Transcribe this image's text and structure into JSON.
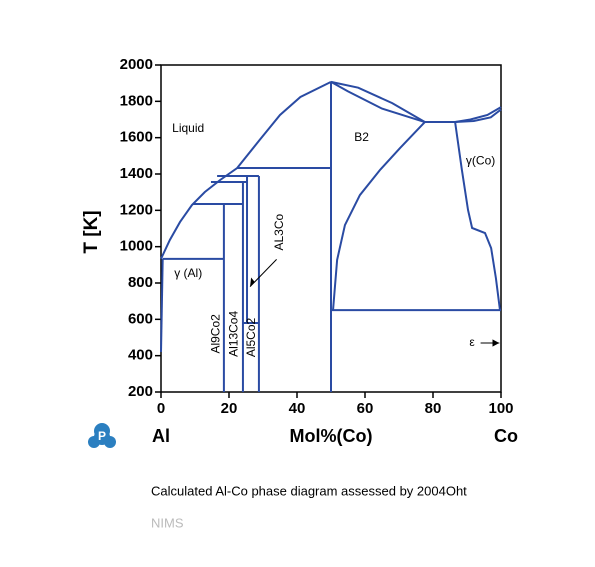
{
  "chart_data": {
    "type": "line",
    "x_label": "Mol%(Co)",
    "y_label": "T [K]",
    "x_left_label": "Al",
    "x_right_label": "Co",
    "xlim": [
      0,
      100
    ],
    "ylim": [
      200,
      2000
    ],
    "xticks": [
      0,
      20,
      40,
      60,
      80,
      100
    ],
    "yticks": [
      200,
      400,
      600,
      800,
      1000,
      1200,
      1400,
      1600,
      1800,
      2000
    ],
    "color": "#2a4ba3",
    "annotations": [
      "Liquid",
      "B2",
      "γ(Co)",
      "γ (Al)",
      "AL3Co",
      "Al9Co2",
      "Al13Co4",
      "Al5Co2",
      "ε"
    ],
    "series": [
      {
        "x": [
          0,
          2.6,
          5.6,
          9.1,
          12.9,
          17.4,
          22.4,
          29,
          35,
          41,
          50
        ],
        "y": [
          933,
          1037,
          1136,
          1229,
          1301,
          1367,
          1433,
          1587,
          1725,
          1824,
          1907
        ]
      },
      {
        "x": [
          0,
          0.5
        ],
        "y": [
          420,
          933
        ]
      },
      {
        "x": [
          0.5,
          18.5
        ],
        "y": [
          933,
          933
        ]
      },
      {
        "x": [
          18.5,
          18.5
        ],
        "y": [
          200,
          1235
        ]
      },
      {
        "x": [
          9.4,
          24.1
        ],
        "y": [
          1235,
          1235
        ]
      },
      {
        "x": [
          24.1,
          24.1
        ],
        "y": [
          200,
          1356
        ]
      },
      {
        "x": [
          14.7,
          25.3
        ],
        "y": [
          1356,
          1356
        ]
      },
      {
        "x": [
          25.3,
          25.3
        ],
        "y": [
          580,
          1389
        ]
      },
      {
        "x": [
          24.1,
          28.8
        ],
        "y": [
          580,
          580
        ]
      },
      {
        "x": [
          16.5,
          28.8
        ],
        "y": [
          1389,
          1389
        ]
      },
      {
        "x": [
          28.8,
          28.8
        ],
        "y": [
          200,
          1389
        ]
      },
      {
        "x": [
          22.4,
          50
        ],
        "y": [
          1433,
          1433
        ]
      },
      {
        "x": [
          50,
          50
        ],
        "y": [
          200,
          1907
        ]
      },
      {
        "x": [
          50,
          58,
          68,
          77.6
        ],
        "y": [
          1907,
          1875,
          1790,
          1686
        ]
      },
      {
        "x": [
          50,
          55,
          65,
          77.6
        ],
        "y": [
          1907,
          1855,
          1760,
          1686
        ]
      },
      {
        "x": [
          50.6,
          51.8,
          54.1,
          58.5,
          64.4,
          70.3,
          77.6
        ],
        "y": [
          651,
          927,
          1119,
          1284,
          1422,
          1543,
          1686
        ]
      },
      {
        "x": [
          77.6,
          86.5
        ],
        "y": [
          1686,
          1686
        ]
      },
      {
        "x": [
          86.5,
          91,
          96,
          100
        ],
        "y": [
          1686,
          1700,
          1725,
          1768
        ]
      },
      {
        "x": [
          86.5,
          92,
          97,
          100
        ],
        "y": [
          1686,
          1692,
          1712,
          1755
        ]
      },
      {
        "x": [
          86.5,
          88.5,
          90.3,
          91.5,
          95.3,
          97.1,
          98.5,
          99.7
        ],
        "y": [
          1686,
          1422,
          1202,
          1103,
          1075,
          992,
          827,
          651
        ]
      },
      {
        "x": [
          50,
          100
        ],
        "y": [
          651,
          651
        ]
      }
    ]
  },
  "logo": "P",
  "caption": "Calculated Al-Co phase diagram assessed by 2004Oht",
  "source": "NIMS"
}
